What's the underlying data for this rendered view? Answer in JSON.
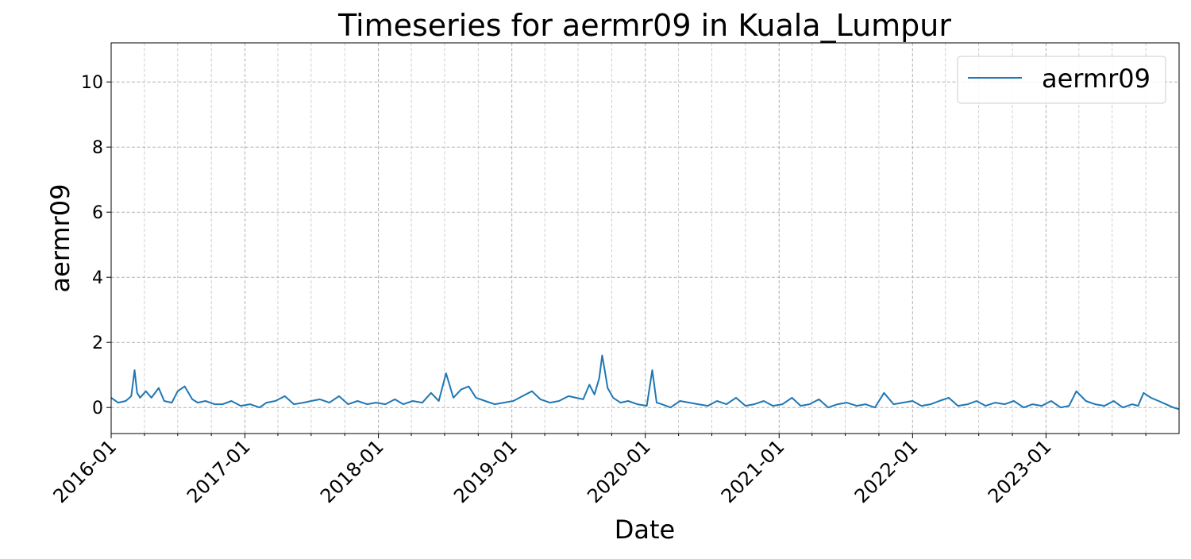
{
  "chart_data": {
    "type": "line",
    "title": "Timeseries for aermr09 in Kuala_Lumpur",
    "xlabel": "Date",
    "ylabel": "aermr09",
    "x_range": [
      "2016-01-01",
      "2023-12-31"
    ],
    "ylim": [
      -0.8,
      11.2
    ],
    "yticks": [
      0,
      2,
      4,
      6,
      8,
      10
    ],
    "xtick_labels": [
      "2016-01",
      "2017-01",
      "2018-01",
      "2019-01",
      "2020-01",
      "2021-01",
      "2022-01",
      "2023-01"
    ],
    "grid": true,
    "legend_position": "top-right",
    "series": [
      {
        "name": "aermr09",
        "color": "#1f77b4",
        "x": [
          "2016-01-01",
          "2016-01-20",
          "2016-02-10",
          "2016-02-25",
          "2016-03-05",
          "2016-03-12",
          "2016-03-20",
          "2016-04-05",
          "2016-04-20",
          "2016-05-10",
          "2016-05-25",
          "2016-06-15",
          "2016-07-01",
          "2016-07-20",
          "2016-08-10",
          "2016-08-25",
          "2016-09-15",
          "2016-10-10",
          "2016-11-01",
          "2016-11-25",
          "2016-12-20",
          "2017-01-15",
          "2017-02-10",
          "2017-03-01",
          "2017-03-25",
          "2017-04-20",
          "2017-05-15",
          "2017-06-10",
          "2017-07-01",
          "2017-07-25",
          "2017-08-20",
          "2017-09-15",
          "2017-10-10",
          "2017-11-05",
          "2017-12-01",
          "2017-12-25",
          "2018-01-20",
          "2018-02-15",
          "2018-03-10",
          "2018-04-05",
          "2018-05-01",
          "2018-05-25",
          "2018-06-15",
          "2018-07-05",
          "2018-07-25",
          "2018-08-15",
          "2018-09-05",
          "2018-09-25",
          "2018-10-20",
          "2018-11-15",
          "2018-12-10",
          "2019-01-05",
          "2019-01-30",
          "2019-02-25",
          "2019-03-20",
          "2019-04-15",
          "2019-05-10",
          "2019-06-05",
          "2019-06-25",
          "2019-07-15",
          "2019-08-01",
          "2019-08-15",
          "2019-08-28",
          "2019-09-05",
          "2019-09-12",
          "2019-09-20",
          "2019-10-05",
          "2019-10-25",
          "2019-11-15",
          "2019-12-10",
          "2020-01-05",
          "2020-01-20",
          "2020-02-01",
          "2020-02-15",
          "2020-03-10",
          "2020-04-05",
          "2020-05-01",
          "2020-05-25",
          "2020-06-20",
          "2020-07-15",
          "2020-08-10",
          "2020-09-05",
          "2020-10-01",
          "2020-10-25",
          "2020-11-20",
          "2020-12-15",
          "2021-01-10",
          "2021-02-05",
          "2021-03-01",
          "2021-03-25",
          "2021-04-20",
          "2021-05-15",
          "2021-06-10",
          "2021-07-05",
          "2021-08-01",
          "2021-08-25",
          "2021-09-20",
          "2021-10-15",
          "2021-11-10",
          "2021-12-05",
          "2022-01-01",
          "2022-01-25",
          "2022-02-20",
          "2022-03-15",
          "2022-04-10",
          "2022-05-05",
          "2022-06-01",
          "2022-06-25",
          "2022-07-20",
          "2022-08-15",
          "2022-09-10",
          "2022-10-05",
          "2022-11-01",
          "2022-11-25",
          "2022-12-20",
          "2023-01-15",
          "2023-02-10",
          "2023-03-05",
          "2023-03-25",
          "2023-04-20",
          "2023-05-15",
          "2023-06-10",
          "2023-07-05",
          "2023-07-30",
          "2023-08-25",
          "2023-09-10",
          "2023-09-25",
          "2023-10-15",
          "2023-11-05",
          "2023-11-25",
          "2023-12-15",
          "2023-12-31"
        ],
        "y": [
          0.3,
          0.15,
          0.2,
          0.35,
          1.15,
          0.45,
          0.3,
          0.5,
          0.3,
          0.6,
          0.2,
          0.15,
          0.5,
          0.65,
          0.25,
          0.15,
          0.2,
          0.1,
          0.1,
          0.2,
          0.05,
          0.1,
          0.0,
          0.15,
          0.2,
          0.35,
          0.1,
          0.15,
          0.2,
          0.25,
          0.15,
          0.35,
          0.1,
          0.2,
          0.1,
          0.15,
          0.1,
          0.25,
          0.1,
          0.2,
          0.15,
          0.45,
          0.2,
          1.05,
          0.3,
          0.55,
          0.65,
          0.3,
          0.2,
          0.1,
          0.15,
          0.2,
          0.35,
          0.5,
          0.25,
          0.15,
          0.2,
          0.35,
          0.3,
          0.25,
          0.7,
          0.4,
          0.9,
          1.6,
          1.15,
          0.6,
          0.3,
          0.15,
          0.2,
          0.1,
          0.05,
          1.15,
          0.15,
          0.1,
          0.0,
          0.2,
          0.15,
          0.1,
          0.05,
          0.2,
          0.1,
          0.3,
          0.05,
          0.1,
          0.2,
          0.05,
          0.1,
          0.3,
          0.05,
          0.1,
          0.25,
          0.0,
          0.1,
          0.15,
          0.05,
          0.1,
          0.0,
          0.45,
          0.1,
          0.15,
          0.2,
          0.05,
          0.1,
          0.2,
          0.3,
          0.05,
          0.1,
          0.2,
          0.05,
          0.15,
          0.1,
          0.2,
          0.0,
          0.1,
          0.05,
          0.2,
          0.0,
          0.05,
          0.5,
          0.2,
          0.1,
          0.05,
          0.2,
          0.0,
          0.1,
          0.05,
          0.45,
          0.3,
          0.2,
          0.1,
          0.0,
          -0.05
        ]
      }
    ]
  }
}
